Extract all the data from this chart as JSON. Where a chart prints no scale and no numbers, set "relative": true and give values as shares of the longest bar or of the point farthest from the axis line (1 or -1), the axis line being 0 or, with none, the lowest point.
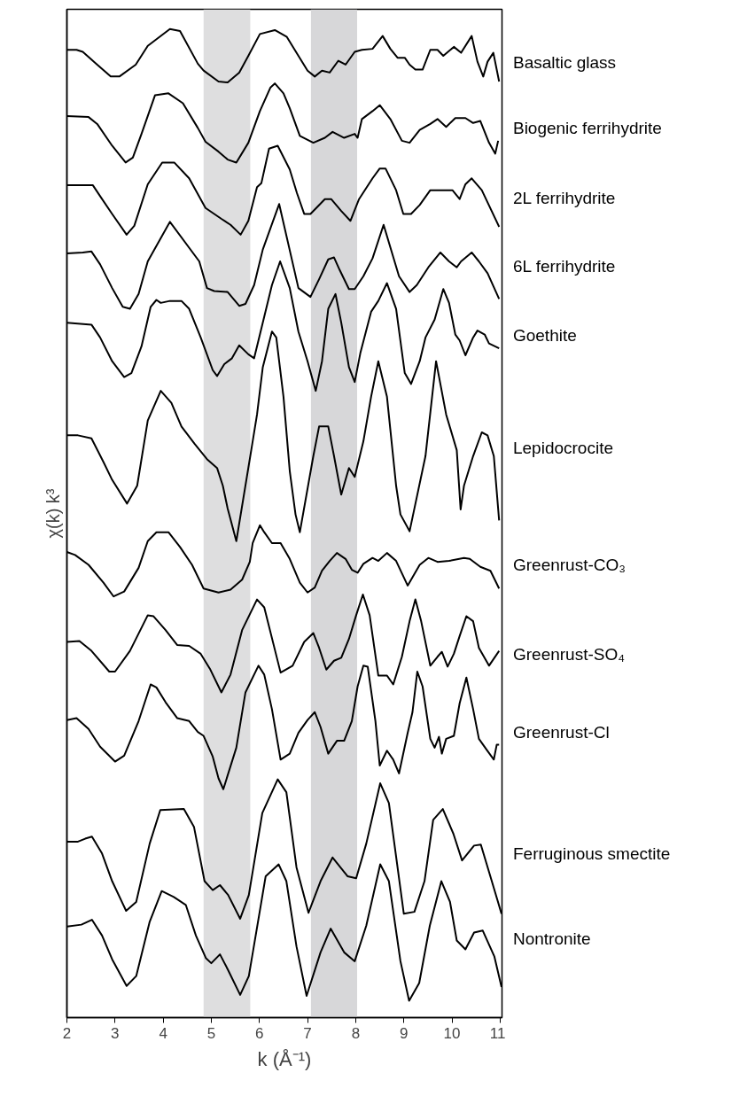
{
  "chart_data": {
    "type": "line",
    "xlabel": "k (Å⁻¹)",
    "ylabel": "χ(k) k³",
    "relative": true,
    "xlim": [
      2,
      11.04
    ],
    "xticks": [
      2,
      3,
      4,
      5,
      6,
      7,
      8,
      9,
      10,
      11
    ],
    "bands": [
      {
        "axis": "x",
        "from": 4.84,
        "to": 5.81,
        "color": "#dededf"
      },
      {
        "axis": "x",
        "from": 7.07,
        "to": 8.03,
        "color": "#d7d7d9"
      }
    ],
    "series": [
      {
        "name": "Basaltic glass",
        "color": "#000000",
        "x": [
          2.0,
          2.2,
          2.33,
          2.63,
          2.91,
          3.09,
          3.43,
          3.68,
          4.14,
          4.35,
          4.72,
          4.84,
          5.15,
          5.34,
          5.58,
          5.77,
          6.01,
          6.32,
          6.57,
          6.81,
          7.0,
          7.15,
          7.3,
          7.46,
          7.64,
          7.79,
          7.98,
          8.13,
          8.35,
          8.56,
          8.72,
          8.87,
          9.02,
          9.12,
          9.24,
          9.39,
          9.55,
          9.7,
          9.82,
          10.04,
          10.19,
          10.41,
          10.53,
          10.65,
          10.74,
          10.86,
          10.98
        ],
        "values": [
          0.979,
          0.979,
          0.977,
          0.964,
          0.952,
          0.952,
          0.964,
          0.983,
          1.0,
          0.998,
          0.965,
          0.958,
          0.947,
          0.946,
          0.956,
          0.973,
          0.995,
          0.999,
          0.992,
          0.973,
          0.958,
          0.952,
          0.958,
          0.956,
          0.968,
          0.964,
          0.977,
          0.979,
          0.98,
          0.993,
          0.98,
          0.971,
          0.971,
          0.964,
          0.959,
          0.959,
          0.979,
          0.979,
          0.973,
          0.982,
          0.976,
          0.993,
          0.967,
          0.952,
          0.967,
          0.976,
          0.947
        ]
      },
      {
        "name": "Biogenic ferrihydrite",
        "color": "#000000",
        "x": [
          2.0,
          2.45,
          2.63,
          2.94,
          3.22,
          3.37,
          3.55,
          3.83,
          4.11,
          4.41,
          4.72,
          4.88,
          5.15,
          5.34,
          5.52,
          5.77,
          6.01,
          6.23,
          6.32,
          6.5,
          6.63,
          6.84,
          7.12,
          7.36,
          7.52,
          7.76,
          7.98,
          8.04,
          8.13,
          8.35,
          8.5,
          8.72,
          8.96,
          9.12,
          9.33,
          9.55,
          9.7,
          9.88,
          10.07,
          10.28,
          10.44,
          10.59,
          10.77,
          10.9,
          10.96
        ],
        "values": [
          0.912,
          0.911,
          0.904,
          0.882,
          0.865,
          0.87,
          0.894,
          0.933,
          0.935,
          0.925,
          0.9,
          0.886,
          0.876,
          0.868,
          0.865,
          0.885,
          0.917,
          0.941,
          0.945,
          0.935,
          0.92,
          0.892,
          0.885,
          0.89,
          0.896,
          0.89,
          0.894,
          0.89,
          0.909,
          0.917,
          0.923,
          0.909,
          0.887,
          0.885,
          0.898,
          0.904,
          0.909,
          0.901,
          0.91,
          0.91,
          0.905,
          0.907,
          0.885,
          0.874,
          0.887
        ]
      },
      {
        "name": "2L ferrihydrite",
        "color": "#000000",
        "x": [
          2.0,
          2.54,
          2.69,
          2.94,
          3.24,
          3.4,
          3.68,
          3.98,
          4.23,
          4.54,
          4.88,
          5.21,
          5.4,
          5.61,
          5.77,
          5.95,
          6.04,
          6.2,
          6.38,
          6.63,
          6.78,
          6.93,
          7.06,
          7.36,
          7.49,
          7.7,
          7.89,
          8.07,
          8.35,
          8.5,
          8.62,
          8.84,
          8.99,
          9.15,
          9.33,
          9.55,
          9.76,
          10.01,
          10.16,
          10.28,
          10.41,
          10.62,
          10.98
        ],
        "values": [
          0.842,
          0.842,
          0.831,
          0.813,
          0.792,
          0.801,
          0.843,
          0.865,
          0.865,
          0.849,
          0.819,
          0.808,
          0.802,
          0.792,
          0.806,
          0.84,
          0.844,
          0.879,
          0.882,
          0.858,
          0.834,
          0.813,
          0.813,
          0.828,
          0.828,
          0.816,
          0.806,
          0.828,
          0.849,
          0.859,
          0.859,
          0.837,
          0.813,
          0.813,
          0.822,
          0.837,
          0.837,
          0.837,
          0.828,
          0.843,
          0.849,
          0.837,
          0.8
        ]
      },
      {
        "name": "6L ferrihydrite",
        "color": "#000000",
        "x": [
          2.0,
          2.33,
          2.51,
          2.69,
          2.94,
          3.16,
          3.31,
          3.49,
          3.68,
          4.14,
          4.75,
          4.91,
          5.06,
          5.34,
          5.58,
          5.71,
          5.89,
          6.07,
          6.41,
          6.81,
          7.06,
          7.24,
          7.43,
          7.55,
          7.67,
          7.86,
          7.98,
          8.16,
          8.35,
          8.58,
          8.9,
          9.12,
          9.27,
          9.51,
          9.76,
          9.94,
          10.1,
          10.19,
          10.41,
          10.56,
          10.74,
          10.98
        ],
        "values": [
          0.773,
          0.774,
          0.775,
          0.762,
          0.738,
          0.719,
          0.717,
          0.732,
          0.765,
          0.805,
          0.765,
          0.738,
          0.735,
          0.734,
          0.72,
          0.722,
          0.741,
          0.777,
          0.823,
          0.738,
          0.729,
          0.747,
          0.767,
          0.769,
          0.756,
          0.737,
          0.737,
          0.75,
          0.768,
          0.802,
          0.75,
          0.734,
          0.741,
          0.759,
          0.774,
          0.765,
          0.759,
          0.765,
          0.774,
          0.765,
          0.753,
          0.727
        ]
      },
      {
        "name": "Goethite",
        "color": "#000000",
        "x": [
          2.0,
          2.51,
          2.69,
          2.94,
          3.19,
          3.34,
          3.55,
          3.74,
          3.86,
          3.95,
          4.14,
          4.38,
          4.54,
          4.78,
          5.03,
          5.12,
          5.27,
          5.43,
          5.58,
          5.77,
          5.89,
          6.01,
          6.26,
          6.43,
          6.63,
          6.81,
          7.0,
          7.17,
          7.3,
          7.43,
          7.58,
          7.7,
          7.86,
          7.98,
          8.1,
          8.32,
          8.47,
          8.65,
          8.84,
          9.02,
          9.15,
          9.33,
          9.45,
          9.64,
          9.82,
          9.94,
          10.07,
          10.16,
          10.28,
          10.44,
          10.53,
          10.68,
          10.77,
          10.98
        ],
        "values": [
          0.703,
          0.701,
          0.688,
          0.664,
          0.648,
          0.652,
          0.679,
          0.719,
          0.726,
          0.723,
          0.725,
          0.725,
          0.717,
          0.688,
          0.655,
          0.649,
          0.661,
          0.667,
          0.68,
          0.671,
          0.667,
          0.691,
          0.741,
          0.765,
          0.738,
          0.694,
          0.664,
          0.634,
          0.664,
          0.717,
          0.732,
          0.703,
          0.658,
          0.643,
          0.673,
          0.714,
          0.725,
          0.743,
          0.717,
          0.652,
          0.641,
          0.664,
          0.688,
          0.706,
          0.737,
          0.723,
          0.691,
          0.685,
          0.67,
          0.688,
          0.695,
          0.691,
          0.682,
          0.677
        ]
      },
      {
        "name": "Lepidocrocite",
        "color": "#000000",
        "x": [
          2.0,
          2.23,
          2.51,
          2.76,
          2.94,
          3.25,
          3.46,
          3.68,
          3.95,
          4.17,
          4.38,
          4.66,
          4.91,
          5.12,
          5.24,
          5.34,
          5.52,
          5.83,
          5.95,
          6.07,
          6.26,
          6.35,
          6.5,
          6.63,
          6.75,
          6.84,
          7.12,
          7.24,
          7.43,
          7.55,
          7.7,
          7.86,
          7.98,
          8.16,
          8.32,
          8.47,
          8.65,
          8.84,
          8.93,
          9.12,
          9.45,
          9.67,
          9.88,
          10.1,
          10.18,
          10.25,
          10.44,
          10.62,
          10.74,
          10.87,
          10.98
        ],
        "values": [
          0.589,
          0.589,
          0.586,
          0.562,
          0.544,
          0.52,
          0.538,
          0.604,
          0.634,
          0.622,
          0.598,
          0.58,
          0.565,
          0.556,
          0.538,
          0.515,
          0.482,
          0.574,
          0.61,
          0.658,
          0.694,
          0.688,
          0.628,
          0.553,
          0.509,
          0.491,
          0.568,
          0.598,
          0.598,
          0.568,
          0.529,
          0.556,
          0.547,
          0.583,
          0.628,
          0.664,
          0.628,
          0.538,
          0.509,
          0.492,
          0.568,
          0.664,
          0.61,
          0.574,
          0.514,
          0.538,
          0.568,
          0.592,
          0.589,
          0.568,
          0.503
        ]
      },
      {
        "name": "Greenrust-CO₃",
        "color": "#000000",
        "x": [
          2.0,
          2.17,
          2.45,
          2.76,
          2.97,
          3.19,
          3.49,
          3.68,
          3.86,
          4.11,
          4.35,
          4.6,
          4.84,
          5.15,
          5.4,
          5.64,
          5.8,
          5.86,
          6.01,
          6.1,
          6.26,
          6.44,
          6.63,
          6.84,
          7.0,
          7.15,
          7.3,
          7.46,
          7.61,
          7.79,
          7.92,
          8.04,
          8.16,
          8.35,
          8.47,
          8.65,
          8.84,
          9.08,
          9.33,
          9.51,
          9.7,
          9.94,
          10.25,
          10.37,
          10.59,
          10.8,
          10.98
        ],
        "values": [
          0.471,
          0.468,
          0.458,
          0.44,
          0.426,
          0.431,
          0.455,
          0.482,
          0.491,
          0.491,
          0.476,
          0.458,
          0.434,
          0.43,
          0.433,
          0.443,
          0.461,
          0.48,
          0.498,
          0.491,
          0.48,
          0.48,
          0.464,
          0.44,
          0.43,
          0.435,
          0.452,
          0.462,
          0.47,
          0.464,
          0.453,
          0.45,
          0.459,
          0.465,
          0.462,
          0.47,
          0.462,
          0.437,
          0.458,
          0.465,
          0.461,
          0.462,
          0.465,
          0.464,
          0.456,
          0.452,
          0.434
        ]
      },
      {
        "name": "Greenrust-SO₄",
        "color": "#000000",
        "x": [
          2.0,
          2.26,
          2.51,
          2.88,
          3.0,
          3.31,
          3.68,
          3.8,
          4.05,
          4.29,
          4.54,
          4.78,
          4.97,
          5.21,
          5.4,
          5.64,
          5.95,
          6.1,
          6.44,
          6.69,
          6.93,
          7.12,
          7.24,
          7.39,
          7.55,
          7.7,
          7.86,
          8.01,
          8.15,
          8.29,
          8.47,
          8.65,
          8.78,
          8.96,
          9.12,
          9.24,
          9.36,
          9.55,
          9.7,
          9.79,
          9.91,
          10.04,
          10.16,
          10.3,
          10.44,
          10.56,
          10.77,
          10.98
        ],
        "values": [
          0.38,
          0.381,
          0.371,
          0.35,
          0.35,
          0.371,
          0.407,
          0.406,
          0.392,
          0.377,
          0.376,
          0.368,
          0.353,
          0.329,
          0.347,
          0.392,
          0.423,
          0.415,
          0.349,
          0.356,
          0.38,
          0.389,
          0.374,
          0.352,
          0.361,
          0.364,
          0.383,
          0.407,
          0.428,
          0.407,
          0.346,
          0.346,
          0.337,
          0.365,
          0.401,
          0.423,
          0.401,
          0.356,
          0.365,
          0.37,
          0.355,
          0.368,
          0.386,
          0.406,
          0.401,
          0.374,
          0.356,
          0.371
        ]
      },
      {
        "name": "Greenrust-Cl",
        "color": "#000000",
        "x": [
          2.0,
          2.2,
          2.45,
          2.69,
          3.0,
          3.19,
          3.49,
          3.74,
          3.86,
          4.05,
          4.29,
          4.54,
          4.72,
          4.84,
          5.03,
          5.15,
          5.25,
          5.52,
          5.71,
          5.98,
          6.1,
          6.26,
          6.44,
          6.63,
          6.81,
          7.0,
          7.15,
          7.27,
          7.43,
          7.61,
          7.76,
          7.92,
          8.04,
          8.16,
          8.25,
          8.41,
          8.5,
          8.65,
          8.78,
          8.9,
          9.08,
          9.18,
          9.28,
          9.39,
          9.55,
          9.64,
          9.73,
          9.79,
          9.88,
          10.04,
          10.16,
          10.3,
          10.44,
          10.56,
          10.72,
          10.87,
          10.93,
          10.98
        ],
        "values": [
          0.301,
          0.303,
          0.292,
          0.274,
          0.259,
          0.265,
          0.3,
          0.337,
          0.334,
          0.319,
          0.303,
          0.3,
          0.289,
          0.285,
          0.264,
          0.242,
          0.231,
          0.273,
          0.329,
          0.356,
          0.347,
          0.312,
          0.261,
          0.267,
          0.288,
          0.301,
          0.309,
          0.294,
          0.267,
          0.28,
          0.28,
          0.3,
          0.335,
          0.356,
          0.355,
          0.3,
          0.255,
          0.27,
          0.261,
          0.247,
          0.288,
          0.309,
          0.35,
          0.335,
          0.282,
          0.273,
          0.284,
          0.267,
          0.282,
          0.285,
          0.318,
          0.344,
          0.312,
          0.282,
          0.271,
          0.261,
          0.276,
          0.276
        ]
      },
      {
        "name": "Ferruginous smectite",
        "color": "#000000",
        "x": [
          2.0,
          2.23,
          2.38,
          2.52,
          2.73,
          2.94,
          3.23,
          3.44,
          3.72,
          3.94,
          4.43,
          4.64,
          4.86,
          5.03,
          5.18,
          5.35,
          5.6,
          5.78,
          6.06,
          6.38,
          6.56,
          6.77,
          7.02,
          7.27,
          7.52,
          7.83,
          8.01,
          8.22,
          8.51,
          8.69,
          9.0,
          9.22,
          9.43,
          9.61,
          9.81,
          10.03,
          10.21,
          10.46,
          10.6,
          10.81,
          11.03
        ],
        "values": [
          0.178,
          0.178,
          0.181,
          0.183,
          0.166,
          0.138,
          0.108,
          0.117,
          0.176,
          0.21,
          0.211,
          0.193,
          0.138,
          0.129,
          0.134,
          0.124,
          0.1,
          0.124,
          0.207,
          0.241,
          0.228,
          0.152,
          0.106,
          0.138,
          0.162,
          0.143,
          0.141,
          0.176,
          0.237,
          0.217,
          0.105,
          0.107,
          0.138,
          0.2,
          0.211,
          0.186,
          0.159,
          0.174,
          0.175,
          0.141,
          0.105
        ]
      },
      {
        "name": "Nontronite",
        "color": "#000000",
        "x": [
          2.0,
          2.3,
          2.52,
          2.73,
          2.94,
          3.24,
          3.44,
          3.72,
          3.97,
          4.22,
          4.47,
          4.68,
          4.89,
          5.0,
          5.18,
          5.35,
          5.6,
          5.78,
          6.13,
          6.4,
          6.56,
          6.77,
          6.98,
          7.27,
          7.48,
          7.76,
          7.98,
          8.22,
          8.51,
          8.69,
          8.93,
          9.11,
          9.32,
          9.54,
          9.78,
          9.96,
          10.1,
          10.28,
          10.46,
          10.64,
          10.88,
          11.03
        ],
        "values": [
          0.092,
          0.094,
          0.099,
          0.083,
          0.059,
          0.032,
          0.042,
          0.097,
          0.128,
          0.122,
          0.114,
          0.083,
          0.06,
          0.055,
          0.064,
          0.048,
          0.023,
          0.042,
          0.143,
          0.155,
          0.138,
          0.072,
          0.022,
          0.066,
          0.09,
          0.066,
          0.057,
          0.093,
          0.155,
          0.138,
          0.057,
          0.017,
          0.035,
          0.093,
          0.138,
          0.117,
          0.078,
          0.069,
          0.086,
          0.088,
          0.062,
          0.031
        ]
      }
    ]
  }
}
